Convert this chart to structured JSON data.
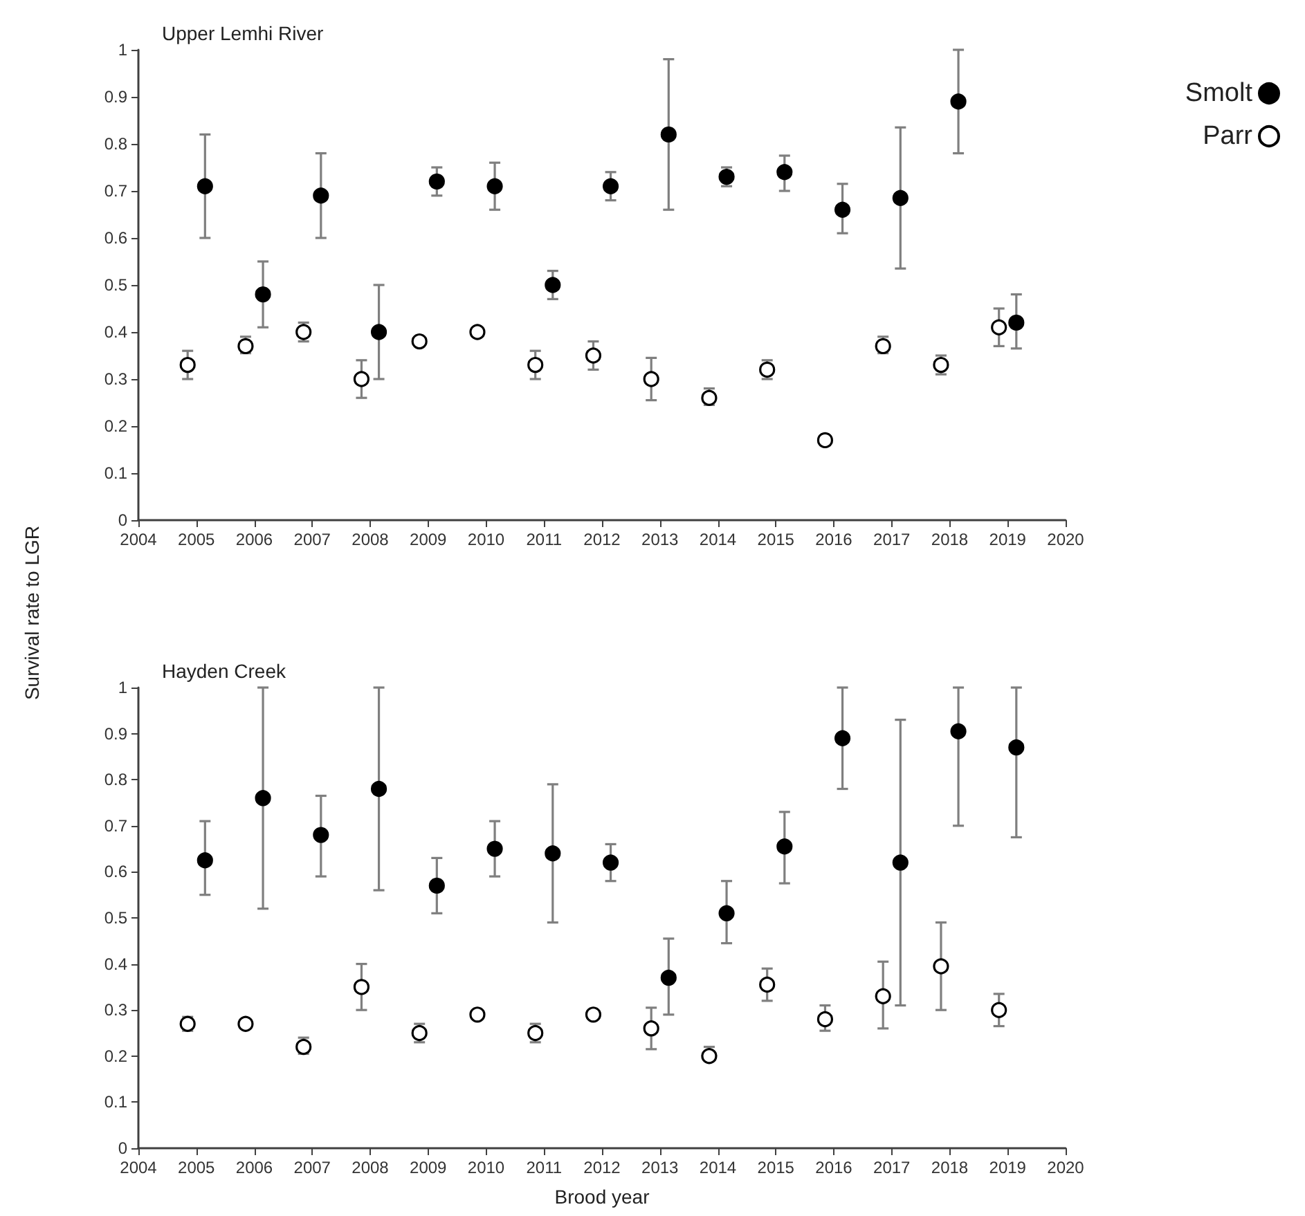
{
  "chart_data": [
    {
      "type": "scatter",
      "title": "Upper Lemhi River",
      "ylabel": "Survival rate to LGR",
      "xlim": [
        2004,
        2020
      ],
      "ylim": [
        0,
        1
      ],
      "xticks": [
        2004,
        2005,
        2006,
        2007,
        2008,
        2009,
        2010,
        2011,
        2012,
        2013,
        2014,
        2015,
        2016,
        2017,
        2018,
        2019,
        2020
      ],
      "yticks": [
        0,
        0.1,
        0.2,
        0.3,
        0.4,
        0.5,
        0.6,
        0.7,
        0.8,
        0.9,
        1
      ],
      "marker": "circle",
      "legend": "right",
      "series": [
        {
          "name": "Smolt",
          "color": "#000000",
          "x": [
            2005.15,
            2006.15,
            2007.15,
            2008.15,
            2009.15,
            2010.15,
            2011.15,
            2012.15,
            2013.15,
            2014.15,
            2015.15,
            2016.15,
            2017.15,
            2018.15,
            2019.15
          ],
          "values": [
            0.71,
            0.48,
            0.69,
            0.4,
            0.72,
            0.71,
            0.5,
            0.71,
            0.82,
            0.73,
            0.74,
            0.66,
            0.685,
            0.89,
            0.42
          ],
          "errors": [
            [
              0.6,
              0.82
            ],
            [
              0.41,
              0.55
            ],
            [
              0.6,
              0.78
            ],
            [
              0.3,
              0.5
            ],
            [
              0.69,
              0.75
            ],
            [
              0.66,
              0.76
            ],
            [
              0.47,
              0.53
            ],
            [
              0.68,
              0.74
            ],
            [
              0.66,
              0.98
            ],
            [
              0.71,
              0.75
            ],
            [
              0.7,
              0.775
            ],
            [
              0.61,
              0.715
            ],
            [
              0.535,
              0.835
            ],
            [
              0.78,
              1.0
            ],
            [
              0.365,
              0.48
            ]
          ]
        },
        {
          "name": "Parr",
          "color": "#ffffff",
          "x": [
            2004.85,
            2005.85,
            2006.85,
            2007.85,
            2008.85,
            2009.85,
            2010.85,
            2011.85,
            2012.85,
            2013.85,
            2014.85,
            2015.85,
            2016.85,
            2017.85,
            2018.85
          ],
          "values": [
            0.33,
            0.37,
            0.4,
            0.3,
            0.38,
            0.4,
            0.33,
            0.35,
            0.3,
            0.26,
            0.32,
            0.17,
            0.37,
            0.33,
            0.41
          ],
          "errors": [
            [
              0.3,
              0.36
            ],
            [
              0.355,
              0.39
            ],
            [
              0.38,
              0.42
            ],
            [
              0.26,
              0.34
            ],
            null,
            null,
            [
              0.3,
              0.36
            ],
            [
              0.32,
              0.38
            ],
            [
              0.255,
              0.345
            ],
            [
              0.245,
              0.28
            ],
            [
              0.3,
              0.34
            ],
            null,
            [
              0.355,
              0.39
            ],
            [
              0.31,
              0.35
            ],
            [
              0.37,
              0.45
            ]
          ]
        }
      ]
    },
    {
      "type": "scatter",
      "title": "Hayden Creek",
      "xlabel": "Brood year",
      "xlim": [
        2004,
        2020
      ],
      "ylim": [
        0,
        1
      ],
      "xticks": [
        2004,
        2005,
        2006,
        2007,
        2008,
        2009,
        2010,
        2011,
        2012,
        2013,
        2014,
        2015,
        2016,
        2017,
        2018,
        2019,
        2020
      ],
      "yticks": [
        0,
        0.1,
        0.2,
        0.3,
        0.4,
        0.5,
        0.6,
        0.7,
        0.8,
        0.9,
        1
      ],
      "marker": "circle",
      "series": [
        {
          "color": "#000000",
          "x": [
            2005.15,
            2006.15,
            2007.15,
            2008.15,
            2009.15,
            2010.15,
            2011.15,
            2012.15,
            2013.15,
            2014.15,
            2015.15,
            2016.15,
            2017.15,
            2018.15,
            2019.15
          ],
          "values": [
            0.625,
            0.76,
            0.68,
            0.78,
            0.57,
            0.65,
            0.64,
            0.62,
            0.37,
            0.51,
            0.655,
            0.89,
            0.62,
            0.905,
            0.87
          ],
          "errors": [
            [
              0.55,
              0.71
            ],
            [
              0.52,
              1.0
            ],
            [
              0.59,
              0.765
            ],
            [
              0.56,
              1.0
            ],
            [
              0.51,
              0.63
            ],
            [
              0.59,
              0.71
            ],
            [
              0.49,
              0.79
            ],
            [
              0.58,
              0.66
            ],
            [
              0.29,
              0.455
            ],
            [
              0.445,
              0.58
            ],
            [
              0.575,
              0.73
            ],
            [
              0.78,
              1.0
            ],
            [
              0.31,
              0.93
            ],
            [
              0.7,
              1.0
            ],
            [
              0.675,
              1.0
            ]
          ]
        },
        {
          "color": "#ffffff",
          "x": [
            2004.85,
            2005.85,
            2006.85,
            2007.85,
            2008.85,
            2009.85,
            2010.85,
            2011.85,
            2012.85,
            2013.85,
            2014.85,
            2015.85,
            2016.85,
            2017.85,
            2018.85
          ],
          "values": [
            0.27,
            0.27,
            0.22,
            0.35,
            0.25,
            0.29,
            0.25,
            0.29,
            0.26,
            0.2,
            0.355,
            0.28,
            0.33,
            0.395,
            0.3
          ],
          "errors": [
            [
              0.255,
              0.285
            ],
            [
              0.26,
              0.28
            ],
            [
              0.205,
              0.24
            ],
            [
              0.3,
              0.4
            ],
            [
              0.23,
              0.27
            ],
            null,
            [
              0.23,
              0.27
            ],
            null,
            [
              0.215,
              0.305
            ],
            [
              0.19,
              0.22
            ],
            [
              0.32,
              0.39
            ],
            [
              0.255,
              0.31
            ],
            [
              0.26,
              0.405
            ],
            [
              0.3,
              0.49
            ],
            [
              0.265,
              0.335
            ]
          ]
        }
      ]
    }
  ]
}
